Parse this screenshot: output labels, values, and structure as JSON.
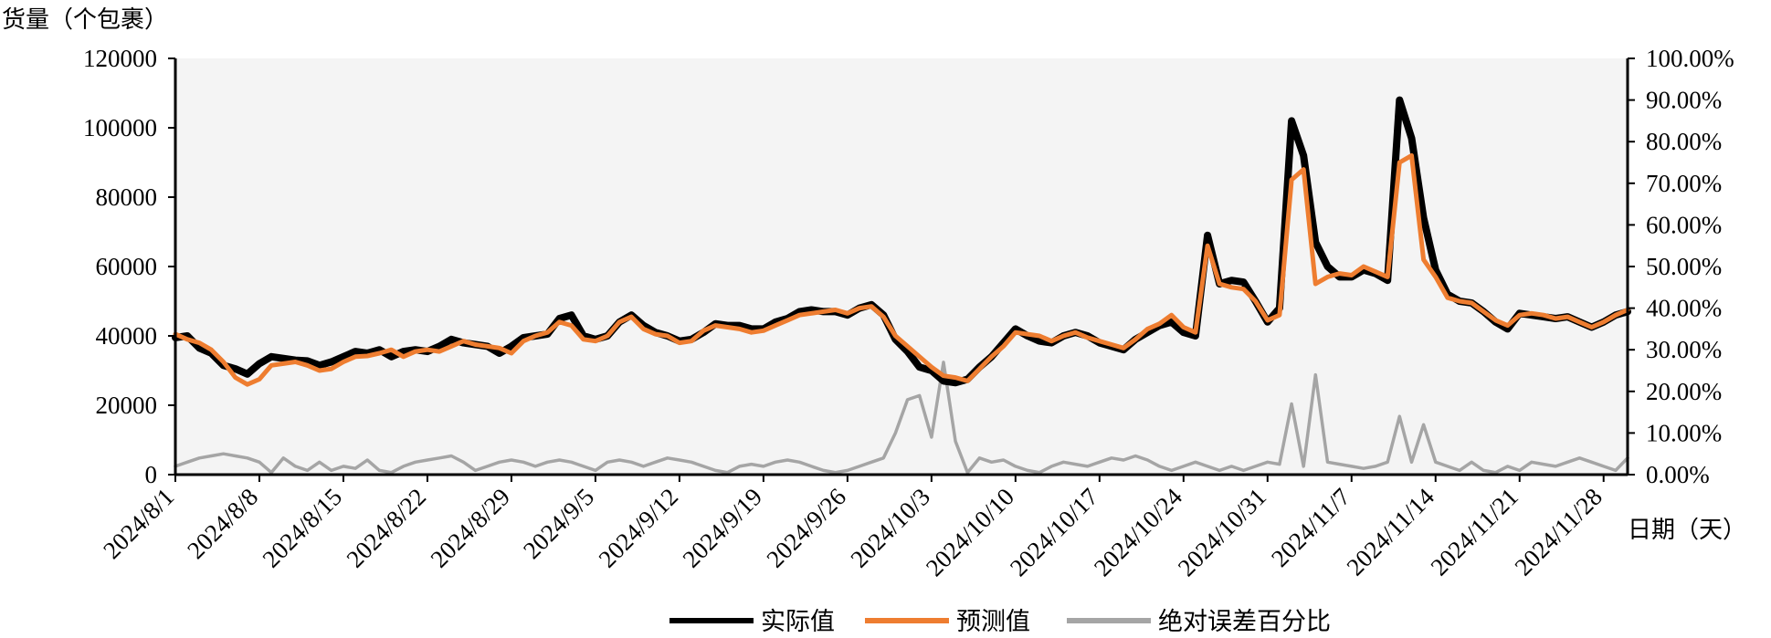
{
  "chart_data": {
    "type": "line",
    "y_axis_title": "货量（个包裹）",
    "x_axis_title": "日期（天）",
    "ylim": [
      0,
      120000
    ],
    "y_ticks": [
      "0",
      "20000",
      "40000",
      "60000",
      "80000",
      "100000",
      "120000"
    ],
    "y2lim": [
      0,
      1
    ],
    "y2_ticks": [
      "0.00%",
      "10.00%",
      "20.00%",
      "30.00%",
      "40.00%",
      "50.00%",
      "60.00%",
      "70.00%",
      "80.00%",
      "90.00%",
      "100.00%"
    ],
    "x_start": "2024/8/1",
    "x_end": "2024/11/30",
    "x_ticks": [
      "2024/8/1",
      "2024/8/8",
      "2024/8/15",
      "2024/8/22",
      "2024/8/29",
      "2024/9/5",
      "2024/9/12",
      "2024/9/19",
      "2024/9/26",
      "2024/10/3",
      "2024/10/10",
      "2024/10/17",
      "2024/10/24",
      "2024/10/31",
      "2024/11/7",
      "2024/11/14",
      "2024/11/21",
      "2024/11/28"
    ],
    "grid": false,
    "legend_position": "bottom",
    "series": [
      {
        "name": "实际值",
        "axis": "left",
        "color": "#000000",
        "values": [
          39500,
          40000,
          36500,
          35000,
          31500,
          30500,
          29000,
          32000,
          34000,
          33500,
          33000,
          32800,
          31500,
          32500,
          34000,
          35500,
          35000,
          36000,
          34000,
          35500,
          36000,
          35500,
          37000,
          39000,
          38000,
          37500,
          37000,
          35000,
          37000,
          39500,
          40000,
          40500,
          45000,
          46000,
          40000,
          39000,
          40000,
          44000,
          46000,
          43000,
          41000,
          40000,
          38500,
          39000,
          41000,
          43500,
          43000,
          43000,
          42000,
          42000,
          44000,
          45000,
          47000,
          47500,
          47000,
          47000,
          46000,
          48000,
          49000,
          46000,
          39000,
          35500,
          31000,
          30000,
          27000,
          26500,
          27500,
          31000,
          34000,
          38000,
          42000,
          40000,
          38500,
          38000,
          40000,
          41000,
          40000,
          38000,
          37000,
          36000,
          39000,
          41000,
          43000,
          44000,
          41000,
          40000,
          69000,
          55000,
          56000,
          55500,
          50000,
          44000,
          48000,
          102000,
          92000,
          67000,
          60000,
          57000,
          57000,
          59000,
          58000,
          56000,
          108000,
          97000,
          74000,
          59000,
          52000,
          50000,
          49500,
          47000,
          44000,
          42000,
          46500,
          46000,
          45500,
          45000,
          45500,
          44000,
          42500,
          44000,
          46000,
          47000
        ]
      },
      {
        "name": "预测值",
        "axis": "left",
        "color": "#ee7d30",
        "values": [
          40500,
          39000,
          38000,
          36000,
          32500,
          28000,
          26000,
          27500,
          31500,
          32000,
          32500,
          31500,
          30000,
          30500,
          32500,
          34000,
          34200,
          35000,
          36000,
          34000,
          35500,
          36000,
          35500,
          37000,
          38500,
          37500,
          37000,
          36500,
          35000,
          38500,
          40000,
          41000,
          44000,
          43000,
          39000,
          38500,
          40000,
          44000,
          45500,
          42000,
          40500,
          40000,
          38000,
          38500,
          41500,
          43000,
          42500,
          42000,
          41000,
          41500,
          43000,
          44500,
          46000,
          46500,
          47000,
          47500,
          46500,
          48000,
          48500,
          45500,
          40000,
          37000,
          34000,
          31000,
          28500,
          28000,
          27000,
          30500,
          34000,
          37000,
          41000,
          40500,
          40000,
          38500,
          40000,
          41000,
          39500,
          38500,
          37500,
          36500,
          39000,
          42000,
          43500,
          46000,
          42500,
          41000,
          66000,
          55000,
          54000,
          53500,
          50000,
          44500,
          46000,
          85000,
          88000,
          55000,
          57000,
          58000,
          57500,
          60000,
          58500,
          57000,
          90000,
          92000,
          62000,
          57000,
          51000,
          50000,
          49500,
          47000,
          44500,
          43000,
          46000,
          46500,
          46000,
          45000,
          45500,
          44000,
          42500,
          44000,
          46000,
          47500
        ]
      },
      {
        "name": "绝对误差百分比",
        "axis": "right",
        "color": "#a5a5a5",
        "values": [
          0.02,
          0.03,
          0.04,
          0.045,
          0.05,
          0.045,
          0.04,
          0.03,
          0.005,
          0.04,
          0.02,
          0.01,
          0.03,
          0.01,
          0.02,
          0.015,
          0.035,
          0.01,
          0.005,
          0.02,
          0.03,
          0.035,
          0.04,
          0.045,
          0.03,
          0.01,
          0.02,
          0.03,
          0.035,
          0.03,
          0.02,
          0.03,
          0.035,
          0.03,
          0.02,
          0.01,
          0.03,
          0.035,
          0.03,
          0.02,
          0.03,
          0.04,
          0.035,
          0.03,
          0.02,
          0.01,
          0.005,
          0.02,
          0.025,
          0.02,
          0.03,
          0.035,
          0.03,
          0.02,
          0.01,
          0.005,
          0.01,
          0.02,
          0.03,
          0.04,
          0.1,
          0.18,
          0.19,
          0.09,
          0.27,
          0.08,
          0.005,
          0.04,
          0.03,
          0.035,
          0.02,
          0.01,
          0.005,
          0.02,
          0.03,
          0.025,
          0.02,
          0.03,
          0.04,
          0.035,
          0.045,
          0.035,
          0.02,
          0.01,
          0.02,
          0.03,
          0.02,
          0.01,
          0.02,
          0.01,
          0.02,
          0.03,
          0.025,
          0.17,
          0.02,
          0.24,
          0.03,
          0.025,
          0.02,
          0.015,
          0.02,
          0.03,
          0.14,
          0.03,
          0.12,
          0.03,
          0.02,
          0.01,
          0.03,
          0.01,
          0.005,
          0.02,
          0.01,
          0.03,
          0.025,
          0.02,
          0.03,
          0.04,
          0.03,
          0.02,
          0.01,
          0.04
        ]
      }
    ]
  }
}
